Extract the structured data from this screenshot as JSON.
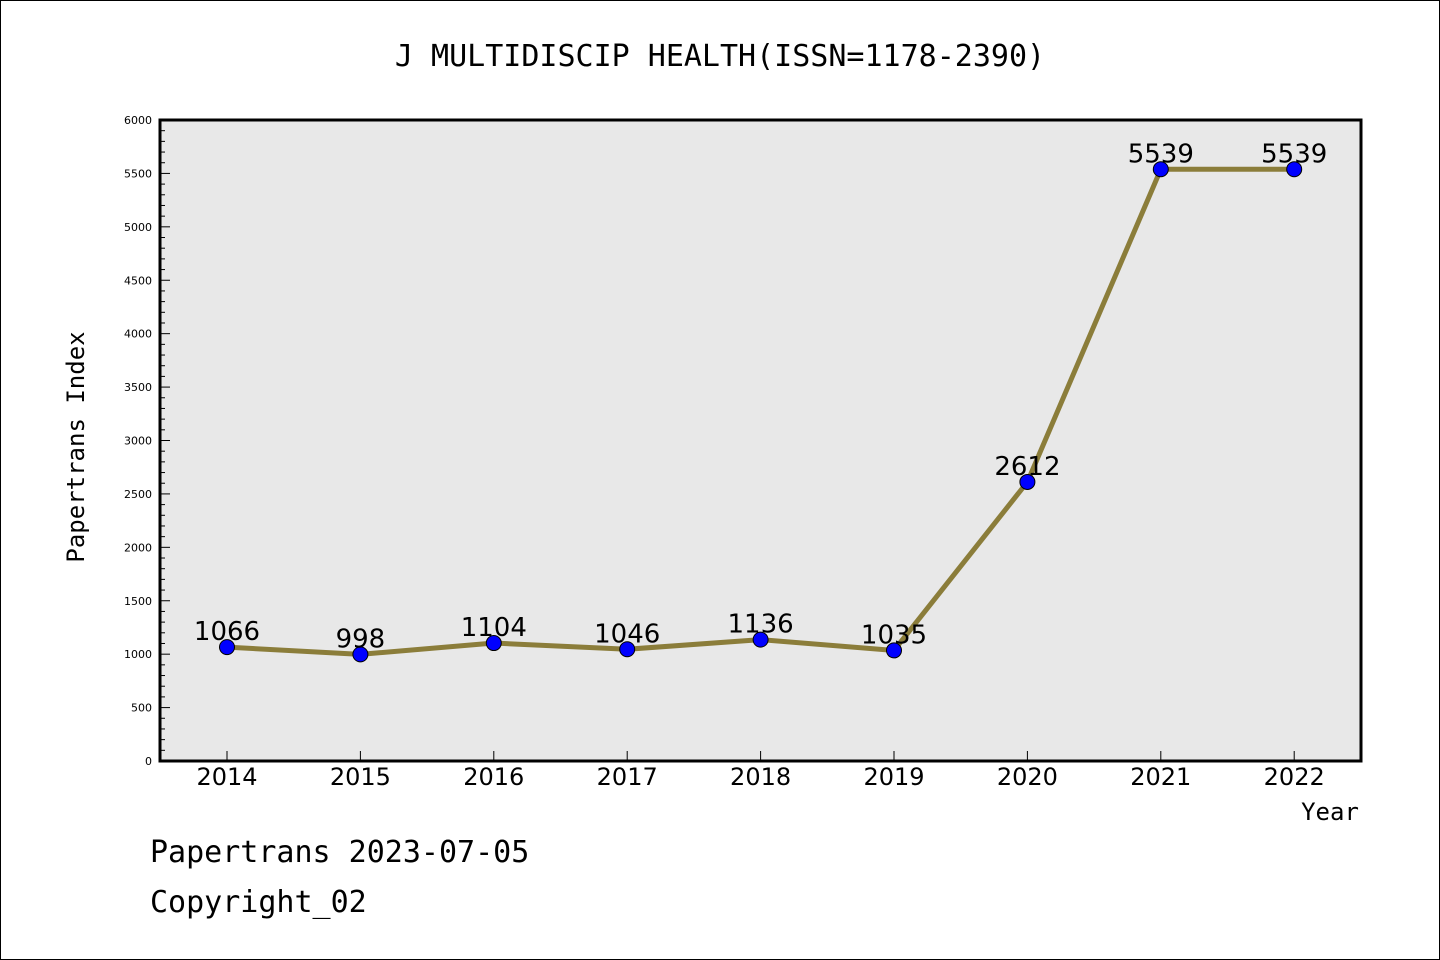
{
  "chart_data": {
    "type": "line",
    "title": "J MULTIDISCIP HEALTH(ISSN=1178-2390)",
    "xlabel": "Year",
    "ylabel": "Papertrans Index",
    "categories": [
      "2014",
      "2015",
      "2016",
      "2017",
      "2018",
      "2019",
      "2020",
      "2021",
      "2022"
    ],
    "series": [
      {
        "values": [
          1066,
          998,
          1104,
          1046,
          1136,
          1035,
          2612,
          5539,
          5539
        ]
      }
    ],
    "data_labels": [
      "1066",
      "998",
      "1104",
      "1046",
      "1136",
      "1035",
      "2612",
      "5539",
      "5539"
    ],
    "ylim": [
      0,
      6000
    ],
    "yticks": [
      "0",
      "500",
      "1000",
      "1500",
      "2000",
      "2500",
      "3000",
      "3500",
      "4000",
      "4500",
      "5000",
      "5500",
      "6000"
    ],
    "line_color": "#8b7d3a",
    "marker_color": "#0000ff",
    "plot_background": "#e8e8e8",
    "grid": false,
    "legend": "none"
  },
  "footer": {
    "line1": "Papertrans 2023-07-05",
    "line2": "Copyright_02"
  }
}
